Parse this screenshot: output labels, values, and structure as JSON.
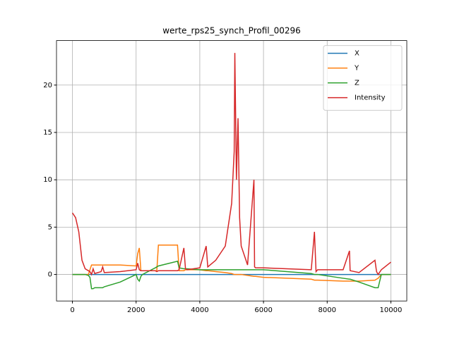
{
  "chart_data": {
    "type": "line",
    "title": "werte_rps25_synch_Profil_00296",
    "x": [
      0,
      100,
      200,
      300,
      400,
      500,
      550,
      600,
      650,
      700,
      800,
      900,
      950,
      1000,
      1500,
      2000,
      2050,
      2100,
      2150,
      2200,
      2600,
      2650,
      2700,
      3300,
      3350,
      3500,
      3550,
      3600,
      4000,
      4200,
      4250,
      4500,
      4800,
      5000,
      5080,
      5100,
      5150,
      5200,
      5250,
      5300,
      5500,
      5700,
      5720,
      5750,
      6000,
      7500,
      7600,
      7650,
      7700,
      8500,
      8700,
      8720,
      9000,
      9500,
      9550,
      9600,
      9700,
      10000
    ],
    "series": [
      {
        "name": "X",
        "color": "#1f77b4",
        "values": [
          0,
          0,
          0,
          0,
          0,
          0,
          0,
          0,
          0,
          0,
          0,
          0,
          0,
          0,
          0,
          0,
          0,
          0,
          0,
          0,
          0,
          0,
          0,
          0,
          0,
          0,
          0,
          0,
          0,
          0,
          0,
          0,
          0,
          0,
          0,
          0,
          0,
          0,
          0,
          0,
          0,
          0,
          0,
          0,
          0,
          0,
          0,
          0,
          0,
          0,
          0,
          0,
          0,
          0,
          0,
          0,
          0,
          0
        ]
      },
      {
        "name": "Y",
        "color": "#ff7f0e",
        "values": [
          0,
          0,
          0,
          0,
          0,
          0,
          0.5,
          1,
          1,
          1,
          1,
          1,
          1,
          1,
          1,
          0.9,
          2.2,
          2.8,
          0.4,
          0.4,
          0.4,
          0.4,
          3.1,
          3.1,
          0.4,
          0.4,
          0.5,
          0.5,
          0.5,
          0.4,
          0.4,
          0.3,
          0.2,
          0.1,
          0,
          0,
          0,
          0,
          0,
          0,
          -0.1,
          -0.2,
          -0.2,
          -0.2,
          -0.3,
          -0.5,
          -0.6,
          -0.6,
          -0.6,
          -0.7,
          -0.7,
          -0.7,
          -0.7,
          -0.6,
          -0.5,
          -0.4,
          0,
          0
        ]
      },
      {
        "name": "Z",
        "color": "#2ca02c",
        "values": [
          0,
          0,
          0,
          0,
          0,
          -0.1,
          -0.3,
          -1.5,
          -1.5,
          -1.4,
          -1.4,
          -1.4,
          -1.4,
          -1.3,
          -0.8,
          0,
          -0.5,
          -0.7,
          -0.2,
          0,
          0.7,
          0.8,
          0.9,
          1.4,
          0.7,
          0.6,
          0.6,
          0.6,
          0.5,
          0.5,
          0.5,
          0.5,
          0.5,
          0.5,
          0.5,
          0.5,
          0.5,
          0.5,
          0.5,
          0.5,
          0.5,
          0.5,
          0.5,
          0.5,
          0.5,
          0.1,
          0,
          0,
          0,
          -0.4,
          -0.5,
          -0.5,
          -0.8,
          -1.4,
          -1.4,
          -1.4,
          0,
          0
        ]
      },
      {
        "name": "Intensity",
        "color": "#d62728",
        "values": [
          6.5,
          6.0,
          4.5,
          1.5,
          0.6,
          0.4,
          0.3,
          0,
          0.6,
          0.1,
          0.2,
          0.3,
          0.8,
          0.2,
          0.3,
          0.5,
          1.2,
          0.5,
          0.4,
          0.4,
          0.4,
          0.3,
          0.4,
          0.4,
          0.5,
          2.8,
          0.6,
          0.5,
          0.7,
          3.0,
          0.8,
          1.5,
          3.0,
          7.5,
          13,
          23.4,
          10,
          16.5,
          6,
          3,
          1,
          10,
          0.8,
          0.7,
          0.7,
          0.5,
          4.5,
          0.3,
          0.5,
          0.5,
          2.5,
          0.4,
          0.2,
          1.5,
          0.3,
          0,
          0.5,
          1.3
        ]
      }
    ],
    "xlim": [
      -500,
      10500
    ],
    "ylim": [
      -2.8,
      24.7
    ],
    "xticks": [
      0,
      2000,
      4000,
      6000,
      8000,
      10000
    ],
    "yticks": [
      0,
      5,
      10,
      15,
      20
    ],
    "grid": true,
    "legend": "upper-right"
  }
}
